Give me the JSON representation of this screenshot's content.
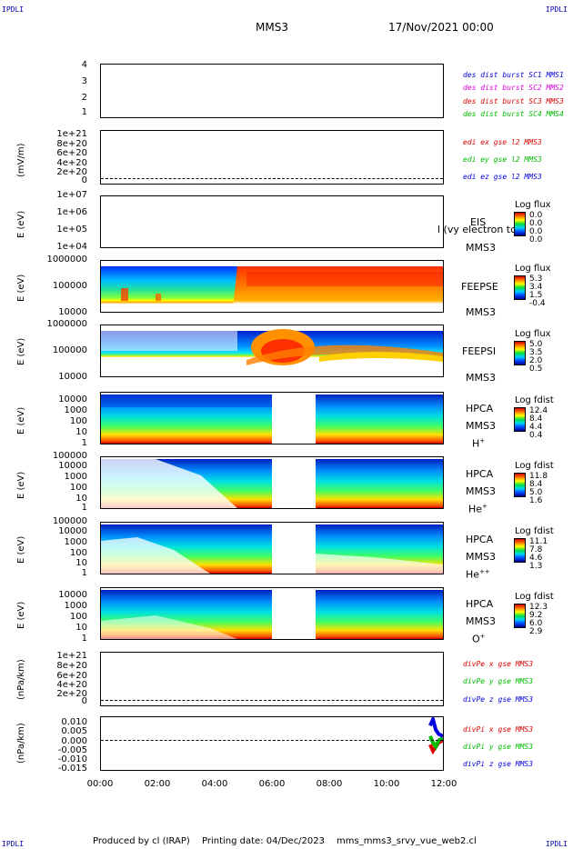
{
  "header": {
    "corner_tl": "IPDLI",
    "corner_tr": "IPDLI",
    "corner_bl": "IPDLI",
    "corner_br": "IPDLI",
    "spacecraft": "MMS3",
    "date": "17/Nov/2021 00:00"
  },
  "footer": {
    "producer": "Produced by cl (IRAP)",
    "printing": "Printing date: 04/Dec/2023",
    "script": "mms_mms3_srvy_vue_web2.cl"
  },
  "colors": {
    "sc1": "#0000dd",
    "sc2": "#dd00dd",
    "sc3": "#dd0000",
    "sc4": "#00bb00",
    "red": "#dd0000",
    "green": "#00bb00",
    "blue": "#0000dd"
  },
  "chart_data": {
    "type": "heatmap",
    "x_ticks": [
      "00:00",
      "02:00",
      "04:00",
      "06:00",
      "08:00",
      "10:00",
      "12:00"
    ],
    "xlim_hours": [
      0,
      12
    ],
    "panels": [
      {
        "id": "conf",
        "y_ticks": [
          "4",
          "3",
          "2",
          "1"
        ],
        "legend": [
          "des dist burst SC1 MMS1",
          "des dist burst SC2 MMS2",
          "des dist burst SC3 MMS3",
          "des dist burst SC4 MMS4"
        ]
      },
      {
        "id": "edi",
        "ylabel": "(mV/m)",
        "y_ticks": [
          "1e+21",
          "8e+20",
          "6e+20",
          "4e+20",
          "2e+20",
          "0"
        ],
        "legend": [
          "edi ex gse l2 MMS3",
          "edi ey gse l2 MMS3",
          "edi ez gse l2 MMS3"
        ]
      },
      {
        "id": "eis",
        "ylabel": "E (eV)",
        "y_ticks": [
          "1e+07",
          "1e+06",
          "1e+05",
          "1e+04"
        ],
        "label": "EIS",
        "label2": "MMS3",
        "overlay": "l (vy electron tc",
        "cb_title": "Log flux",
        "cb_values": [
          "0.0",
          "0.0",
          "0.0",
          "0.0"
        ]
      },
      {
        "id": "feepse",
        "ylabel": "E (eV)",
        "y_ticks": [
          "1000000",
          "100000",
          "10000"
        ],
        "label": "FEEPSE",
        "label2": "MMS3",
        "cb_title": "Log flux",
        "cb_values": [
          "5.3",
          "3.4",
          "1.5",
          "-0.4"
        ]
      },
      {
        "id": "feepsi",
        "ylabel": "E (eV)",
        "y_ticks": [
          "1000000",
          "100000",
          "10000"
        ],
        "label": "FEEPSI",
        "label2": "MMS3",
        "cb_title": "Log flux",
        "cb_values": [
          "5.0",
          "3.5",
          "2.0",
          "0.5"
        ]
      },
      {
        "id": "hpca_h",
        "ylabel": "E (eV)",
        "y_ticks": [
          "10000",
          "1000",
          "100",
          "10",
          "1"
        ],
        "label": "HPCA",
        "label2": "MMS3",
        "species": "H",
        "charge": "+",
        "cb_title": "Log fdist",
        "cb_values": [
          "12.4",
          "8.4",
          "4.4",
          "0.4"
        ]
      },
      {
        "id": "hpca_he",
        "ylabel": "E (eV)",
        "y_ticks": [
          "100000",
          "10000",
          "1000",
          "100",
          "10",
          "1"
        ],
        "label": "HPCA",
        "label2": "MMS3",
        "species": "He",
        "charge": "+",
        "cb_title": "Log fdist",
        "cb_values": [
          "11.8",
          "8.4",
          "5.0",
          "1.6"
        ]
      },
      {
        "id": "hpca_hepp",
        "ylabel": "E (eV)",
        "y_ticks": [
          "100000",
          "10000",
          "1000",
          "100",
          "10",
          "1"
        ],
        "label": "HPCA",
        "label2": "MMS3",
        "species": "He",
        "charge": "++",
        "cb_title": "Log fdist",
        "cb_values": [
          "11.1",
          "7.8",
          "4.6",
          "1.3"
        ]
      },
      {
        "id": "hpca_o",
        "ylabel": "E (eV)",
        "y_ticks": [
          "10000",
          "1000",
          "100",
          "10",
          "1"
        ],
        "label": "HPCA",
        "label2": "MMS3",
        "species": "O",
        "charge": "+",
        "cb_title": "Log fdist",
        "cb_values": [
          "12.3",
          "9.2",
          "6.0",
          "2.9"
        ]
      },
      {
        "id": "divpe",
        "ylabel": "(nPa/km)",
        "y_ticks": [
          "1e+21",
          "8e+20",
          "6e+20",
          "4e+20",
          "2e+20",
          "0"
        ],
        "legend": [
          "divPe x gse MMS3",
          "divPe y gse MMS3",
          "divPe z gse MMS3"
        ]
      },
      {
        "id": "divpi",
        "ylabel": "(nPa/km)",
        "y_ticks": [
          "0.010",
          "0.005",
          "0.000",
          "-0.005",
          "-0.010",
          "-0.015"
        ],
        "legend": [
          "divPi x gse MMS3",
          "divPi y gse MMS3",
          "divPi z gse MMS3"
        ],
        "ylim": [
          -0.015,
          0.01
        ],
        "series": [
          {
            "name": "divPi x gse MMS3",
            "x_hours": [
              11.55,
              11.65,
              11.75,
              11.85,
              12.0
            ],
            "values": [
              -0.003,
              -0.006,
              -0.004,
              -0.002,
              -0.001
            ]
          },
          {
            "name": "divPi y gse MMS3",
            "x_hours": [
              11.55,
              11.65,
              11.75,
              11.85,
              12.0
            ],
            "values": [
              0.001,
              -0.002,
              -0.004,
              -0.001,
              0.0
            ]
          },
          {
            "name": "divPi z gse MMS3",
            "x_hours": [
              11.55,
              11.65,
              11.75,
              11.85,
              12.0
            ],
            "values": [
              0.006,
              0.009,
              0.004,
              0.002,
              0.001
            ]
          }
        ]
      }
    ],
    "data_gap_hours": [
      6.0,
      7.5
    ]
  }
}
